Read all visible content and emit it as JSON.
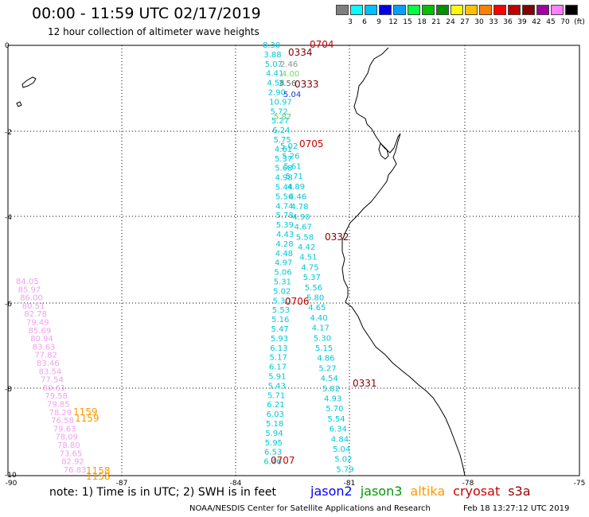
{
  "title": "00:00 - 11:59 UTC 02/17/2019",
  "subtitle": "12 hour collection of altimeter wave heights",
  "legend": {
    "unit_label": "(ft)",
    "colors": [
      "#7f7f7f",
      "#00ffff",
      "#00c0ff",
      "#0000e0",
      "#00a0ff",
      "#00ff40",
      "#00c000",
      "#009000",
      "#ffff00",
      "#ffc000",
      "#ff8000",
      "#ff0000",
      "#c00000",
      "#800000",
      "#a000a0",
      "#ff80ff",
      "#000000"
    ],
    "labels": [
      "3",
      "6",
      "9",
      "12",
      "15",
      "18",
      "21",
      "24",
      "27",
      "30",
      "33",
      "36",
      "39",
      "42",
      "45",
      "70"
    ]
  },
  "axes": {
    "x_ticks": [
      "-90",
      "-87",
      "-84",
      "-81",
      "-78",
      "-75"
    ],
    "y_ticks": [
      "0",
      "-2",
      "-4",
      "-6",
      "-8",
      "-10"
    ]
  },
  "tracks": {
    "jason3_values": [
      "8.30",
      "3.88",
      "5.07",
      "4.41",
      "4.58",
      "2.90",
      "10.97",
      "5.72",
      "5.27",
      "6.24",
      "5.75",
      "4.61",
      "5.37",
      "5.68",
      "4.98",
      "5.44",
      "5.56",
      "4.74",
      "5.78",
      "5.39",
      "4.43",
      "4.28",
      "4.48",
      "4.97",
      "5.06",
      "5.31",
      "5.02",
      "5.30",
      "5.53",
      "5.16",
      "5.47",
      "5.93",
      "6.13",
      "5.17",
      "6.17",
      "5.91",
      "5.43",
      "5.71",
      "6.21",
      "6.03",
      "5.18",
      "5.94",
      "5.95",
      "6.53",
      "6.46"
    ],
    "jason3b_values": [
      "5.02",
      "5.26",
      "5.61",
      "5.71",
      "4.89",
      "4.46",
      "4.78",
      "4.90",
      "4.67",
      "5.58",
      "4.42",
      "4.51",
      "4.75",
      "5.37",
      "5.56",
      "5.80",
      "4.65",
      "4.40",
      "4.17",
      "5.30",
      "5.15",
      "4.86",
      "5.27",
      "4.54",
      "5.82",
      "4.93",
      "5.70",
      "5.54",
      "6.34",
      "4.84",
      "5.04",
      "5.02",
      "5.79"
    ],
    "s3a_values": [
      "84.05",
      "85.97",
      "86.00",
      "80.51",
      "82.78",
      "79.49",
      "85.69",
      "80.94",
      "83.63",
      "77.82",
      "83.46",
      "83.54",
      "77.54",
      "80.61",
      "79.58",
      "79.85",
      "78.29",
      "76.58",
      "79.63",
      "78.09",
      "78.80",
      "73.65",
      "82.92",
      "76.83"
    ],
    "time_labels": [
      "0704",
      "0334",
      "0333",
      "0705",
      "0332",
      "0706",
      "0331",
      "0707",
      "1159",
      "1159",
      "1158",
      "1158"
    ],
    "misc_values": [
      "2.46",
      "4.00",
      "3.56",
      "5.04",
      "5.87"
    ]
  },
  "note": "note: 1) Time is in UTC; 2) SWH is in feet",
  "satellites": [
    {
      "name": "jason2",
      "color": "#0000ff"
    },
    {
      "name": "jason3",
      "color": "#009900"
    },
    {
      "name": "altika",
      "color": "#ff9900"
    },
    {
      "name": "cryosat",
      "color": "#cc0000"
    },
    {
      "name": "s3a",
      "color": "#990000"
    }
  ],
  "footer_left": "NOAA/NESDIS Center for Satellite Applications and Research",
  "footer_right": "Feb 18 13:27:12 UTC 2019"
}
